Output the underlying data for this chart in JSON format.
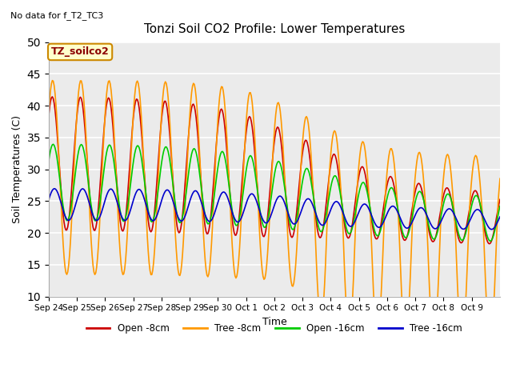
{
  "title": "Tonzi Soil CO2 Profile: Lower Temperatures",
  "subtitle": "No data for f_T2_TC3",
  "ylabel": "Soil Temperatures (C)",
  "xlabel": "Time",
  "annotation": "TZ_soilco2",
  "ylim": [
    10,
    50
  ],
  "yticks": [
    10,
    15,
    20,
    25,
    30,
    35,
    40,
    45,
    50
  ],
  "legend_labels": [
    "Open -8cm",
    "Tree -8cm",
    "Open -16cm",
    "Tree -16cm"
  ],
  "legend_colors": [
    "#cc0000",
    "#ff9900",
    "#00cc00",
    "#0000cc"
  ],
  "x_tick_labels": [
    "Sep 24",
    "Sep 25",
    "Sep 26",
    "Sep 27",
    "Sep 28",
    "Sep 29",
    "Sep 30",
    "Oct 1",
    "Oct 2",
    "Oct 3",
    "Oct 4",
    "Oct 5",
    "Oct 6",
    "Oct 7",
    "Oct 8",
    "Oct 9"
  ],
  "fig_width": 6.4,
  "fig_height": 4.8,
  "dpi": 100
}
